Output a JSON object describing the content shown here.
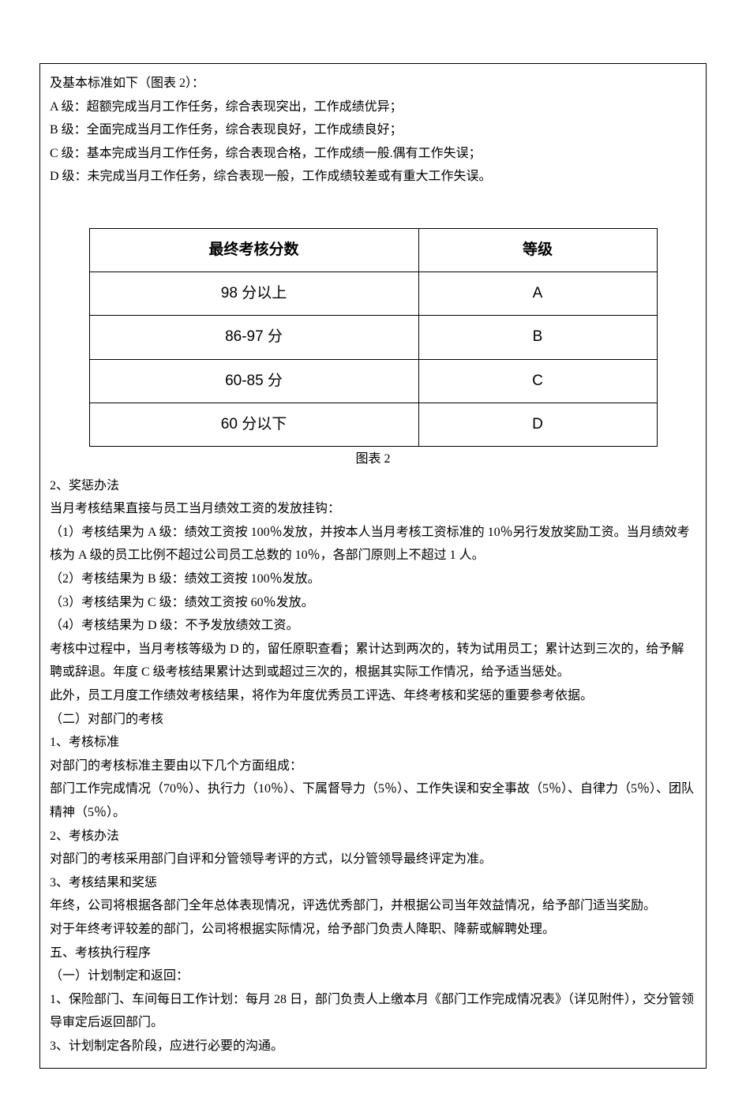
{
  "intro": {
    "line0": "及基本标准如下（图表 2）：",
    "gradeA": "A 级：超额完成当月工作任务，综合表现突出，工作成绩优异；",
    "gradeB": "B 级：全面完成当月工作任务，综合表现良好，工作成绩良好；",
    "gradeC": "C 级：基本完成当月工作任务，综合表现合格，工作成绩一般.偶有工作失误；",
    "gradeD": "D 级：未完成当月工作任务，综合表现一般，工作成绩较差或有重大工作失误。"
  },
  "table": {
    "header_score": "最终考核分数",
    "header_grade": "等级",
    "rows": [
      {
        "score": "98 分以上",
        "grade": "A"
      },
      {
        "score": "86-97 分",
        "grade": "B"
      },
      {
        "score": "60-85 分",
        "grade": "C"
      },
      {
        "score": "60 分以下",
        "grade": "D"
      }
    ],
    "caption": "图表 2"
  },
  "reward": {
    "heading": "2、奖惩办法",
    "line1": "当月考核结果直接与员工当月绩效工资的发放挂钩：",
    "item1": "（1）考核结果为 A 级：绩效工资按 100％发放，并按本人当月考核工资标准的 10％另行发放奖励工资。当月绩效考核为 A 级的员工比例不超过公司员工总数的 10％，各部门原则上不超过 1 人。",
    "item2": "（2）考核结果为 B 级：绩效工资按 100％发放。",
    "item3": "（3）考核结果为 C 级：绩效工资按 60％发放。",
    "item4": "（4）考核结果为 D 级：不予发放绩效工资。",
    "para1": "考核中过程中，当月考核等级为 D 的，留任原职查看；累计达到两次的，转为试用员工；累计达到三次的，给予解聘或辞退。年度 C 级考核结果累计达到或超过三次的，根据其实际工作情况，给予适当惩处。",
    "para2": "此外，员工月度工作绩效考核结果，将作为年度优秀员工评选、年终考核和奖惩的重要参考依据。"
  },
  "dept": {
    "heading": "（二）对部门的考核",
    "sub1": "1、考核标准",
    "sub1_line1": "对部门的考核标准主要由以下几个方面组成：",
    "sub1_line2": "部门工作完成情况（70％）、执行力（10％）、下属督导力（5％）、工作失误和安全事故（5％）、自律力（5％）、团队精神（5％）。",
    "sub2": "2、考核办法",
    "sub2_line1": "对部门的考核采用部门自评和分管领导考评的方式，以分管领导最终评定为准。",
    "sub3": "3、考核结果和奖惩",
    "sub3_line1": "年终，公司将根据各部门全年总体表现情况，评选优秀部门，并根据公司当年效益情况，给予部门适当奖励。",
    "sub3_line2": "对于年终考评较差的部门，公司将根据实际情况，给予部门负责人降职、降薪或解聘处理。"
  },
  "procedure": {
    "heading": "五、考核执行程序",
    "sub1": "（一）计划制定和返回：",
    "item1": "1、保险部门、车间每日工作计划：每月 28 日，部门负责人上缴本月《部门工作完成情况表》（详见附件），交分管领导审定后返回部门。",
    "item3": "3、计划制定各阶段，应进行必要的沟通。"
  }
}
